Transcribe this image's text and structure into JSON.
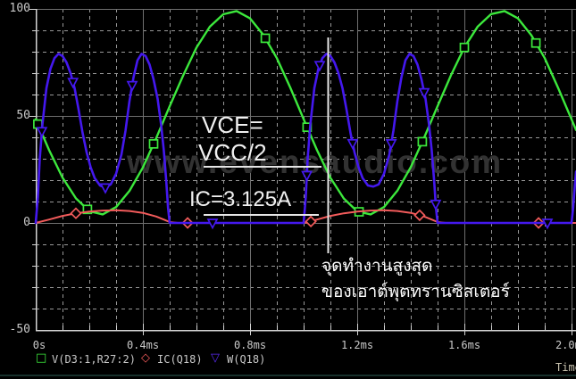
{
  "window": {
    "background": "#000000",
    "axis_color": "#d4d4d4",
    "grid_major_color": "#6f6f6f",
    "grid_minor_color": "#989898",
    "tick_label_color": "#c9c9c9"
  },
  "chart_data": {
    "type": "line",
    "title": "",
    "xlabel": "Time",
    "x_unit": "ms",
    "xlim": [
      0,
      2.017
    ],
    "ylim": [
      -50,
      100
    ],
    "x_major_step_ms": 0.4,
    "x_minor_step_ms": 0.1,
    "y_major_step": 50,
    "y_minor_step": 10,
    "grid": "on",
    "legend_position": "bottom",
    "cursor": {
      "t": 1.09,
      "label": "operating point cursor"
    },
    "series": [
      {
        "name": "V(D3:1,R27:2)",
        "color": "#3ce83c",
        "marker": "square",
        "width": 2.4,
        "points": [
          [
            0,
            48.5
          ],
          [
            0.05,
            34
          ],
          [
            0.1,
            21.2
          ],
          [
            0.15,
            11.5
          ],
          [
            0.2,
            5.5
          ],
          [
            0.25,
            4
          ],
          [
            0.3,
            7.4
          ],
          [
            0.35,
            15
          ],
          [
            0.4,
            25.9
          ],
          [
            0.45,
            39.7
          ],
          [
            0.5,
            54.5
          ],
          [
            0.55,
            68.8
          ],
          [
            0.6,
            81.9
          ],
          [
            0.65,
            91.7
          ],
          [
            0.7,
            97.5
          ],
          [
            0.75,
            99
          ],
          [
            0.8,
            95.6
          ],
          [
            0.85,
            87.8
          ],
          [
            0.9,
            77
          ],
          [
            0.95,
            63.3
          ],
          [
            1,
            48.5
          ],
          [
            1.05,
            34
          ],
          [
            1.1,
            21.1
          ],
          [
            1.15,
            11.4
          ],
          [
            1.2,
            5.4
          ],
          [
            1.25,
            4
          ],
          [
            1.3,
            7.4
          ],
          [
            1.35,
            15.1
          ],
          [
            1.4,
            26.1
          ],
          [
            1.45,
            39.9
          ],
          [
            1.5,
            54.6
          ],
          [
            1.55,
            69
          ],
          [
            1.6,
            82
          ],
          [
            1.65,
            91.8
          ],
          [
            1.7,
            97.6
          ],
          [
            1.75,
            99
          ],
          [
            1.8,
            95.6
          ],
          [
            1.85,
            87.7
          ],
          [
            1.9,
            77
          ],
          [
            1.95,
            63.1
          ],
          [
            2,
            48.4
          ],
          [
            2.017,
            43.4
          ]
        ],
        "marker_t": [
          0.008,
          0.193,
          0.44,
          0.857,
          1.013,
          1.207,
          1.443,
          1.6,
          1.867
        ]
      },
      {
        "name": "IC(Q18)",
        "color": "#f25b5b",
        "marker": "diamond",
        "width": 2,
        "points": [
          [
            0,
            0
          ],
          [
            0.05,
            1.6
          ],
          [
            0.1,
            3.3
          ],
          [
            0.15,
            4.5
          ],
          [
            0.2,
            5.3
          ],
          [
            0.25,
            5.8
          ],
          [
            0.3,
            5.9
          ],
          [
            0.35,
            5.6
          ],
          [
            0.4,
            4.7
          ],
          [
            0.45,
            3
          ],
          [
            0.48,
            1.5
          ],
          [
            0.5,
            0.4
          ],
          [
            0.53,
            0
          ],
          [
            0.65,
            0
          ],
          [
            0.8,
            0
          ],
          [
            0.95,
            0
          ],
          [
            1,
            0
          ],
          [
            1.02,
            0.4
          ],
          [
            1.05,
            1.6
          ],
          [
            1.1,
            3.3
          ],
          [
            1.15,
            4.5
          ],
          [
            1.2,
            5.3
          ],
          [
            1.25,
            5.8
          ],
          [
            1.3,
            5.9
          ],
          [
            1.35,
            5.6
          ],
          [
            1.4,
            4.7
          ],
          [
            1.45,
            3
          ],
          [
            1.48,
            1.5
          ],
          [
            1.5,
            0.4
          ],
          [
            1.53,
            0
          ],
          [
            1.65,
            0
          ],
          [
            1.8,
            0
          ],
          [
            1.95,
            0
          ],
          [
            2.017,
            0
          ]
        ],
        "marker_t": [
          0.15,
          0.567,
          1.027,
          1.433,
          1.877
        ]
      },
      {
        "name": "W(Q18)",
        "color": "#4418ee",
        "marker": "triangle-down",
        "width": 2.6,
        "points": [
          [
            0,
            0
          ],
          [
            0.008,
            12
          ],
          [
            0.015,
            30
          ],
          [
            0.025,
            46
          ],
          [
            0.04,
            63
          ],
          [
            0.055,
            72
          ],
          [
            0.07,
            77
          ],
          [
            0.085,
            79
          ],
          [
            0.1,
            78
          ],
          [
            0.115,
            75
          ],
          [
            0.13,
            70
          ],
          [
            0.145,
            63
          ],
          [
            0.16,
            53
          ],
          [
            0.175,
            42
          ],
          [
            0.19,
            33
          ],
          [
            0.205,
            26
          ],
          [
            0.22,
            21
          ],
          [
            0.24,
            17.5
          ],
          [
            0.26,
            16.5
          ],
          [
            0.28,
            18
          ],
          [
            0.3,
            23
          ],
          [
            0.32,
            32
          ],
          [
            0.335,
            43
          ],
          [
            0.35,
            57
          ],
          [
            0.365,
            68
          ],
          [
            0.38,
            76
          ],
          [
            0.395,
            79
          ],
          [
            0.41,
            78
          ],
          [
            0.425,
            74
          ],
          [
            0.44,
            67
          ],
          [
            0.455,
            58
          ],
          [
            0.468,
            46
          ],
          [
            0.478,
            34
          ],
          [
            0.487,
            20
          ],
          [
            0.494,
            7
          ],
          [
            0.5,
            0
          ],
          [
            0.6,
            0
          ],
          [
            0.75,
            0
          ],
          [
            0.9,
            0
          ],
          [
            1,
            0
          ],
          [
            1.008,
            12
          ],
          [
            1.015,
            30
          ],
          [
            1.025,
            46
          ],
          [
            1.04,
            63
          ],
          [
            1.055,
            72
          ],
          [
            1.07,
            77
          ],
          [
            1.085,
            79
          ],
          [
            1.1,
            78
          ],
          [
            1.115,
            75
          ],
          [
            1.13,
            70
          ],
          [
            1.145,
            63
          ],
          [
            1.16,
            53
          ],
          [
            1.175,
            42
          ],
          [
            1.19,
            33
          ],
          [
            1.205,
            26
          ],
          [
            1.22,
            21
          ],
          [
            1.24,
            17.5
          ],
          [
            1.26,
            17
          ],
          [
            1.28,
            18
          ],
          [
            1.3,
            23
          ],
          [
            1.32,
            32
          ],
          [
            1.335,
            43
          ],
          [
            1.35,
            57
          ],
          [
            1.365,
            68
          ],
          [
            1.38,
            76
          ],
          [
            1.395,
            79
          ],
          [
            1.41,
            78
          ],
          [
            1.425,
            74
          ],
          [
            1.44,
            67
          ],
          [
            1.455,
            58
          ],
          [
            1.468,
            46
          ],
          [
            1.478,
            34
          ],
          [
            1.487,
            20
          ],
          [
            1.494,
            7
          ],
          [
            1.5,
            0
          ],
          [
            1.6,
            0
          ],
          [
            1.75,
            0
          ],
          [
            1.9,
            0
          ],
          [
            2,
            0
          ],
          [
            2.006,
            7
          ],
          [
            2.012,
            17
          ],
          [
            2.017,
            24
          ]
        ],
        "marker_t": [
          0.023,
          0.139,
          0.26,
          0.36,
          0.66,
          1.012,
          1.06,
          1.183,
          1.327,
          1.45,
          1.493,
          1.91
        ]
      }
    ]
  },
  "axes": {
    "y_labels": [
      {
        "text": "100",
        "v": 100
      },
      {
        "text": "50",
        "v": 50
      },
      {
        "text": "0",
        "v": 0
      },
      {
        "text": "-50",
        "v": -50
      }
    ],
    "x_labels": [
      {
        "text": "0s",
        "t": 0
      },
      {
        "text": "0.4ms",
        "t": 0.4
      },
      {
        "text": "0.8ms",
        "t": 0.8
      },
      {
        "text": "1.2ms",
        "t": 1.2
      },
      {
        "text": "1.6ms",
        "t": 1.6
      },
      {
        "text": "2.0ms",
        "t": 2.0
      }
    ],
    "x_axis_title": "Time"
  },
  "annotations": {
    "vce_line1": "VCE=",
    "vce_line2": "VCC/2",
    "ic_label": "IC=3.125A",
    "thai_line1": "จุดทำงานสูงสุด",
    "thai_line2": "ของเอาต์พุตทรานซิสเตอร์",
    "annotation_color": "#f0f0f0"
  },
  "watermark": {
    "text": "www.evensaudio.com",
    "color": "#323232"
  },
  "legend": {
    "items": [
      {
        "glyph": "□",
        "label": "V(D3:1,R27:2)",
        "color": "#3ce83c"
      },
      {
        "glyph": "◇",
        "label": "IC(Q18)",
        "color": "#f25b5b"
      },
      {
        "glyph": "▽",
        "label": "W(Q18)",
        "color": "#5a2af2"
      }
    ]
  }
}
